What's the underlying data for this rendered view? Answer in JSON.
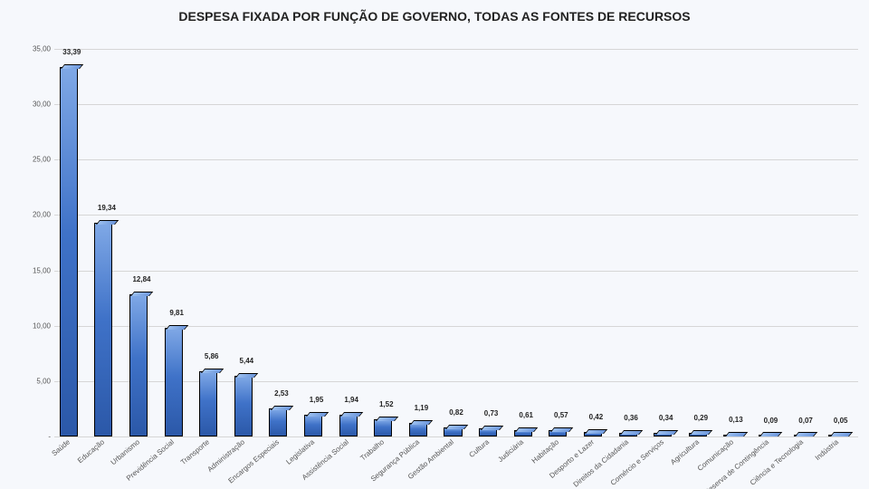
{
  "title": "DESPESA FIXADA POR FUNÇÃO DE GOVERNO, TODAS AS FONTES DE RECURSOS",
  "title_fontsize": 14,
  "chart": {
    "type": "bar",
    "ymax": 35,
    "ytick_step": 5,
    "ytick_labels": [
      "-",
      "5,00",
      "10,00",
      "15,00",
      "20,00",
      "25,00",
      "30,00",
      "35,00"
    ],
    "ylabel_fontsize": 8,
    "value_fontsize": 8,
    "xlabel_fontsize": 8,
    "xlabel_rotation_deg": -40,
    "background_color": "#f6f8fc",
    "grid_color": "#d6d6d6",
    "bar_gradient": [
      "#7fa8e6",
      "#3f72c8",
      "#2b58a8"
    ],
    "bar_border_color": "#000000",
    "categories": [
      "Saúde",
      "Educação",
      "Urbanismo",
      "Previdência Social",
      "Transporte",
      "Administração",
      "Encargos Especiais",
      "Legislativa",
      "Assistência Social",
      "Trabalho",
      "Segurança Pública",
      "Gestão Ambiental",
      "Cultura",
      "Judiciária",
      "Habitação",
      "Desporto e Lazer",
      "Direitos da Cidadania",
      "Comércio e Serviços",
      "Agricultura",
      "Comunicação",
      "Reserva de Contingência",
      "Ciência e Tecnologia",
      "Indústria"
    ],
    "values": [
      33.39,
      19.34,
      12.84,
      9.81,
      5.86,
      5.44,
      2.53,
      1.95,
      1.94,
      1.52,
      1.19,
      0.82,
      0.73,
      0.61,
      0.57,
      0.42,
      0.36,
      0.34,
      0.29,
      0.13,
      0.09,
      0.07,
      0.05
    ],
    "value_labels": [
      "33,39",
      "19,34",
      "12,84",
      "9,81",
      "5,86",
      "5,44",
      "2,53",
      "1,95",
      "1,94",
      "1,52",
      "1,19",
      "0,82",
      "0,73",
      "0,61",
      "0,57",
      "0,42",
      "0,36",
      "0,34",
      "0,29",
      "0,13",
      "0,09",
      "0,07",
      "0,05"
    ]
  }
}
